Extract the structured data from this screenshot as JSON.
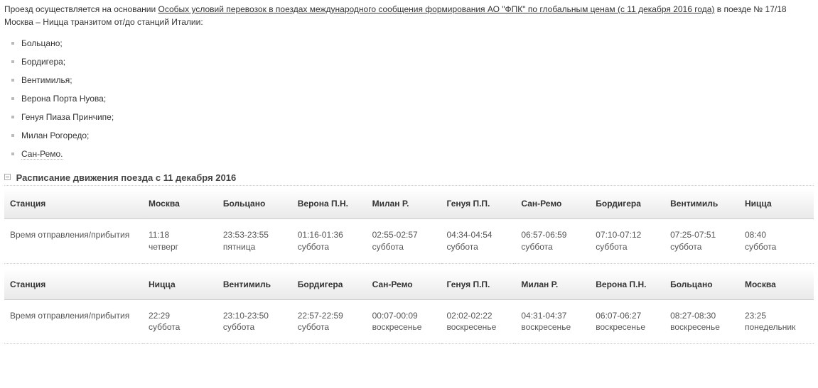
{
  "intro": {
    "prefix": "Проезд осуществляется на основании ",
    "link_text": "Особых условий перевозок в поездах международного сообщения формирования АО \"ФПК\" по глобальным ценам (с 11 декабря 2016 года)",
    "suffix": " в поезде № 17/18 Москва – Ницца транзитом от/до станций Италии:"
  },
  "stations": [
    "Больцано;",
    "Бордигера;",
    "Вентимилья;",
    "Верона Порта Нуова;",
    "Генуя Пиаза Принчипе;",
    "Милан Рогоредо;",
    "Сан-Ремо."
  ],
  "schedule_title": "Расписание движения поезда с 11 декабря 2016",
  "table1": {
    "header_label": "Станция",
    "headers": [
      "Москва",
      "Больцано",
      "Верона П.Н.",
      "Милан Р.",
      "Генуя П.П.",
      "Сан-Ремо",
      "Бордигера",
      "Вентимиль",
      "Ницца"
    ],
    "row_label": "Время отправления/прибытия",
    "cells": [
      {
        "time": "11:18",
        "day": "четверг"
      },
      {
        "time": "23:53-23:55",
        "day": "пятница"
      },
      {
        "time": "01:16-01:36",
        "day": "суббота"
      },
      {
        "time": "02:55-02:57",
        "day": "суббота"
      },
      {
        "time": "04:34-04:54",
        "day": "суббота"
      },
      {
        "time": "06:57-06:59",
        "day": "суббота"
      },
      {
        "time": "07:10-07:12",
        "day": "суббота"
      },
      {
        "time": "07:25-07:51",
        "day": "суббота"
      },
      {
        "time": "08:40",
        "day": "суббота"
      }
    ]
  },
  "table2": {
    "header_label": "Станция",
    "headers": [
      "Ницца",
      "Вентимиль",
      "Бордигера",
      "Сан-Ремо",
      "Генуя П.П.",
      "Милан Р.",
      "Верона П.Н.",
      "Больцано",
      "Москва"
    ],
    "row_label": "Время отправления/прибытия",
    "cells": [
      {
        "time": "22:29",
        "day": "суббота"
      },
      {
        "time": "23:10-23:50",
        "day": "суббота"
      },
      {
        "time": "22:57-22:59",
        "day": "суббота"
      },
      {
        "time": "00:07-00:09",
        "day": "воскресенье"
      },
      {
        "time": "02:02-02:22",
        "day": "воскресенье"
      },
      {
        "time": "04:31-04:37",
        "day": "воскресенье"
      },
      {
        "time": "06:07-06:27",
        "day": "воскресенье"
      },
      {
        "time": "08:27-08:30",
        "day": "воскресенье"
      },
      {
        "time": "23:25",
        "day": "понедельник"
      }
    ]
  }
}
